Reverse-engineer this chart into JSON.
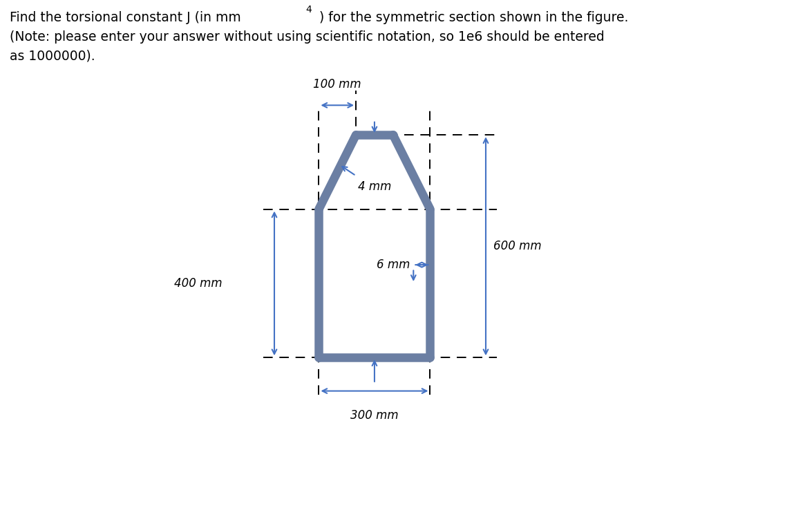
{
  "bg_color": "#ffffff",
  "shape_color": "#6b7fa3",
  "shape_linewidth": 10,
  "dashed_color": "#000000",
  "arrow_color": "#4472C4",
  "dim_100_label": "100 mm",
  "dim_4_label": "4 mm",
  "dim_6_label": "6 mm",
  "dim_300_label": "300 mm",
  "dim_400_label": "400 mm",
  "dim_600_label": "600 mm",
  "title1": "Find the torsional constant J (in mm",
  "title1_sup": "4",
  "title1_end": " ) for the symmetric section shown in the figure.",
  "title2": "(Note: please enter your answer without using scientific notation, so 1e6 should be entered",
  "title3": "as 1000000).",
  "fig_width": 11.36,
  "fig_height": 7.32,
  "dpi": 100,
  "plot_xlim": [
    -1.5,
    10.0
  ],
  "plot_ylim": [
    -2.0,
    8.5
  ],
  "ox": 2.0,
  "oy": 0.5,
  "scale": 0.01
}
